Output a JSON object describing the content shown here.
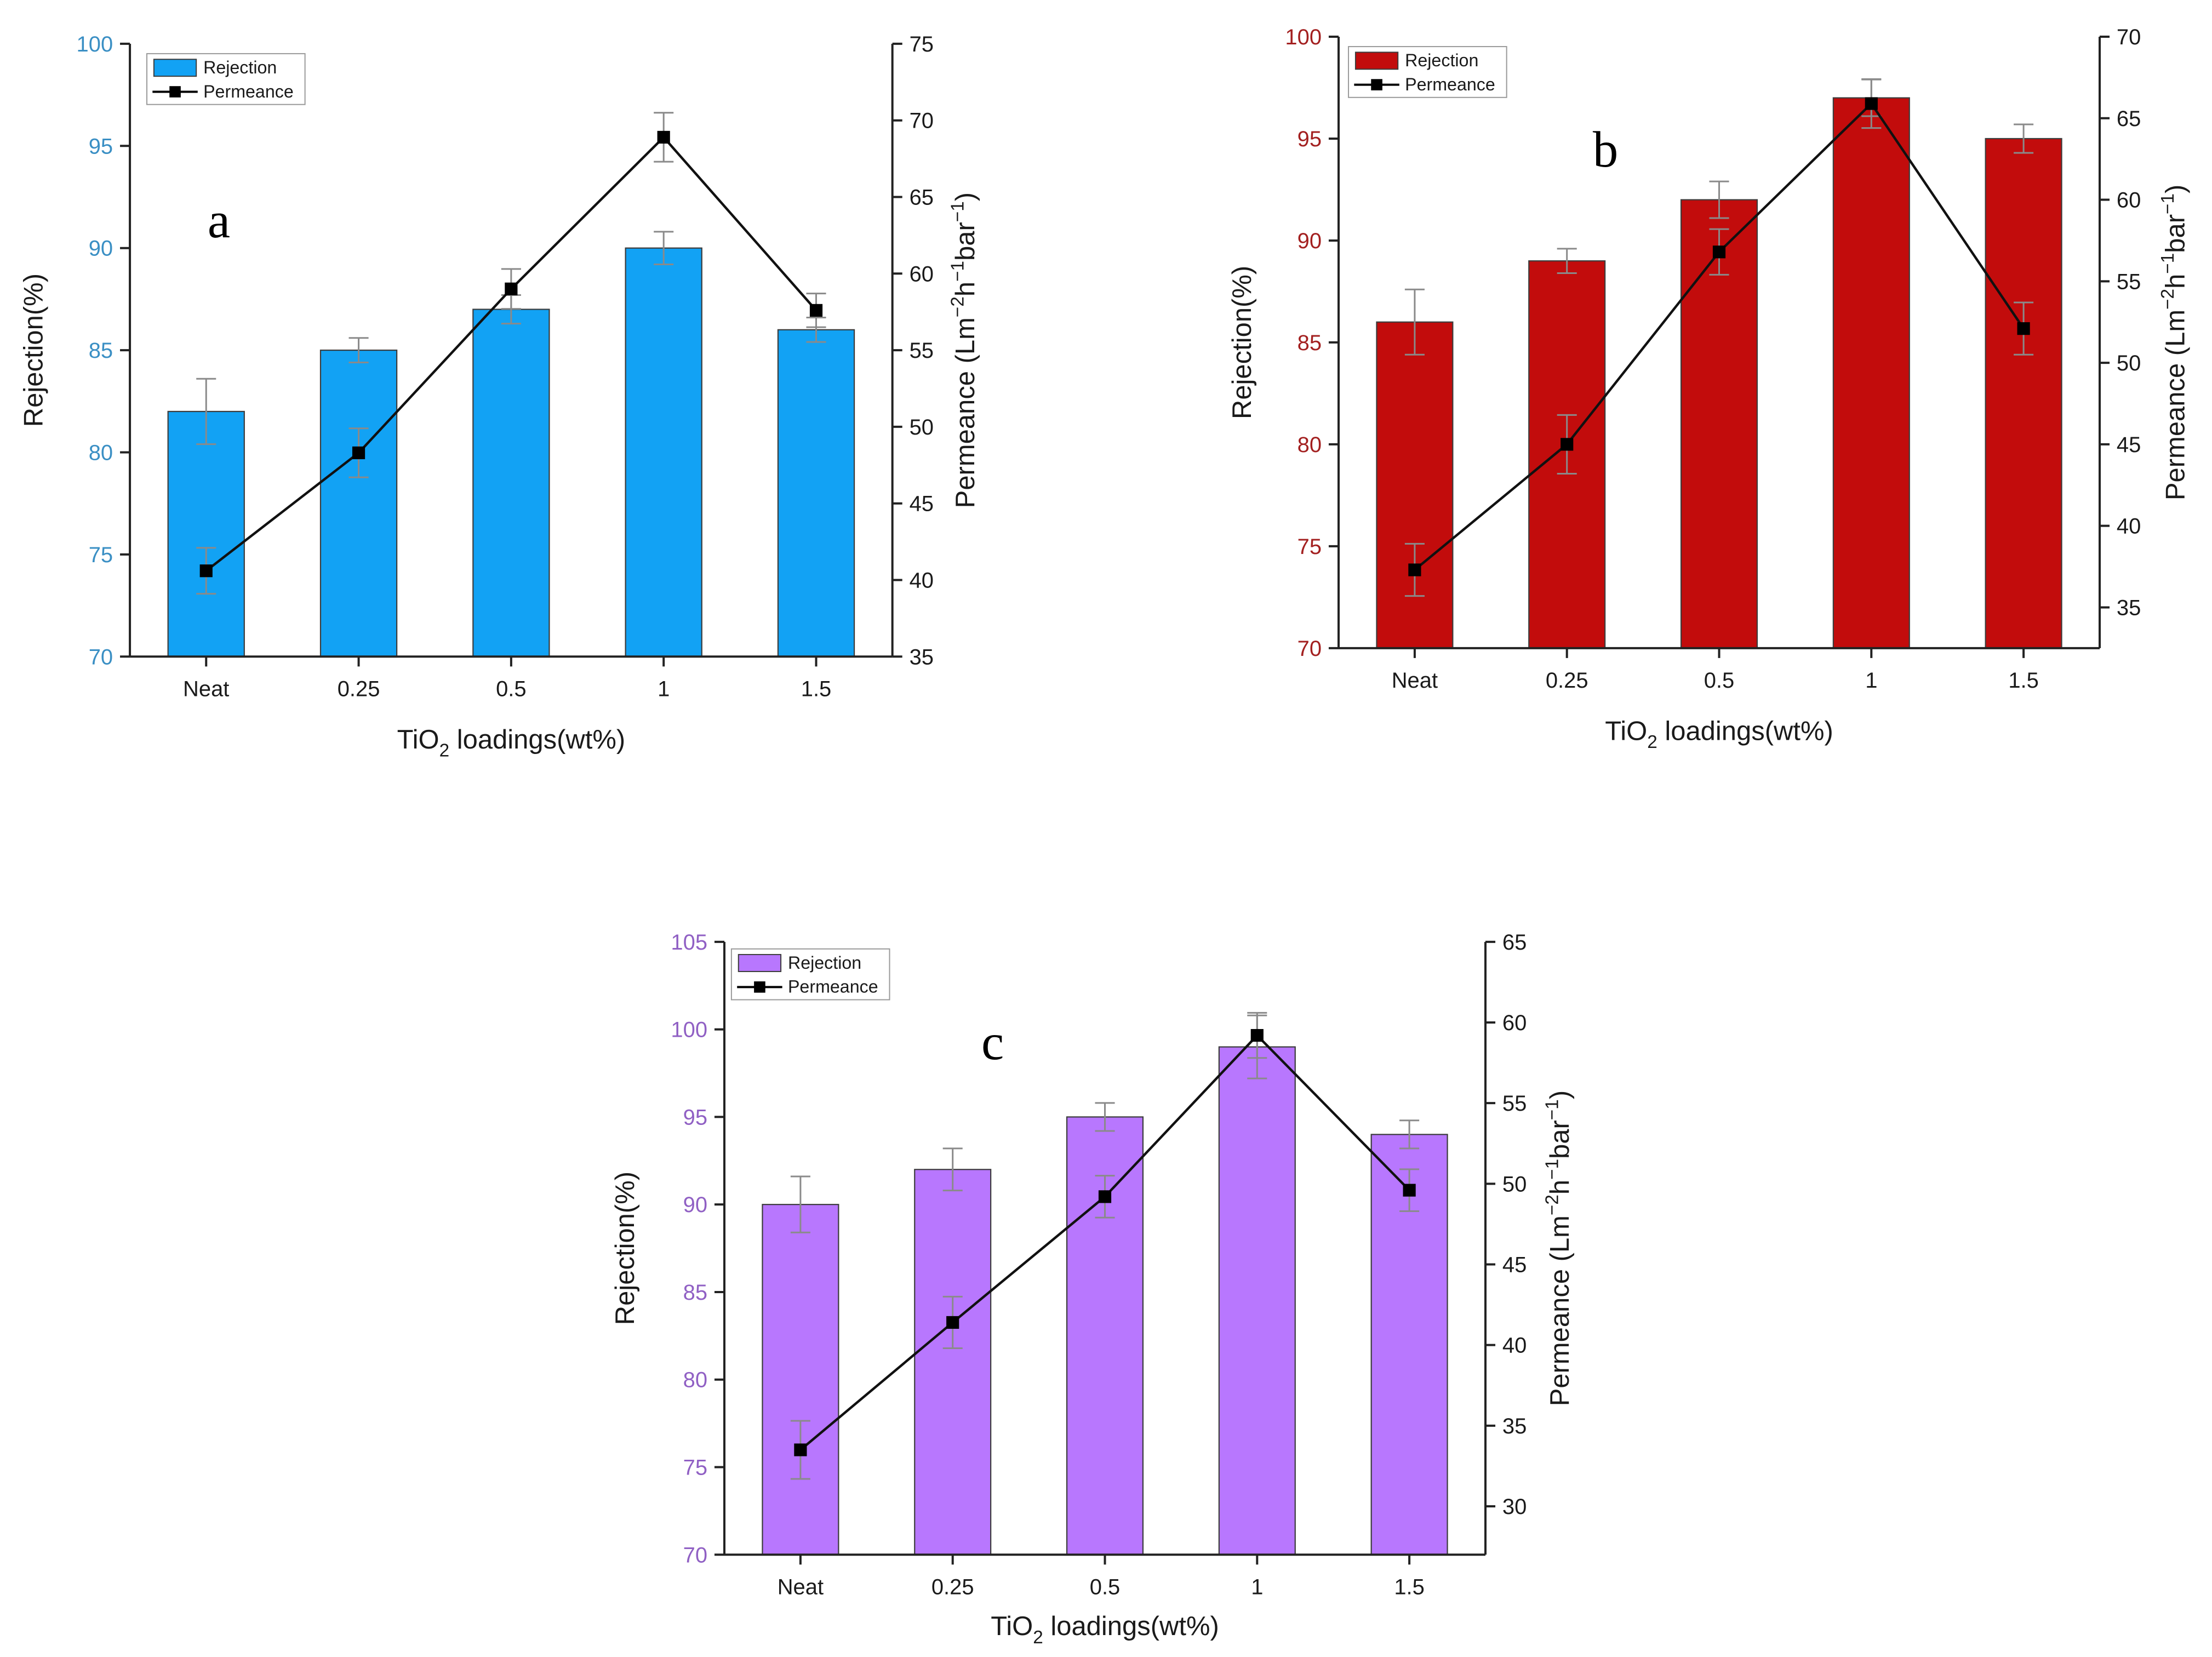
{
  "figure": {
    "background": "#ffffff",
    "axis_color": "#222222",
    "line_color": "#111111",
    "error_bar_color": "#8a8a8a"
  },
  "chart_data": [
    {
      "id": "a",
      "type": "bar+line",
      "panel_label": "a",
      "accent_color": "#3a8fc4",
      "bar_color": "#12a2f4",
      "categories": [
        "Neat",
        "0.25",
        "0.5",
        "1",
        "1.5"
      ],
      "xlabel_main": "TiO",
      "xlabel_sub": "2",
      "xlabel_rest": " loadings(wt%)",
      "ylabel": "Rejection(%)",
      "y2label_parts": [
        "Permeance (Lm",
        "−2",
        "h",
        "−1",
        "bar",
        "−1",
        ")"
      ],
      "ylim": [
        70,
        100
      ],
      "yticks": [
        70,
        75,
        80,
        85,
        90,
        95,
        100
      ],
      "y2lim": [
        35,
        75
      ],
      "y2ticks": [
        35,
        40,
        45,
        50,
        55,
        60,
        65,
        70,
        75
      ],
      "series": [
        {
          "name": "Rejection",
          "kind": "bar",
          "values": [
            82,
            85,
            87,
            90,
            86
          ],
          "errors": [
            1.6,
            0.6,
            0.7,
            0.8,
            0.6
          ]
        },
        {
          "name": "Permeance",
          "kind": "line",
          "axis": "right",
          "values": [
            40.6,
            48.3,
            59.0,
            68.9,
            57.6
          ],
          "errors": [
            1.5,
            1.6,
            1.3,
            1.6,
            1.1
          ]
        }
      ],
      "legend": [
        "Rejection",
        "Permeance"
      ],
      "legend_position": "top-left"
    },
    {
      "id": "b",
      "type": "bar+line",
      "panel_label": "b",
      "accent_color": "#a32020",
      "bar_color": "#c20c0c",
      "categories": [
        "Neat",
        "0.25",
        "0.5",
        "1",
        "1.5"
      ],
      "xlabel_main": "TiO",
      "xlabel_sub": "2",
      "xlabel_rest": " loadings(wt%)",
      "ylabel": "Rejection(%)",
      "y2label_parts": [
        "Permeance (Lm",
        "−2",
        "h",
        "−1",
        "bar",
        "−1",
        ")"
      ],
      "ylim": [
        70,
        100
      ],
      "yticks": [
        70,
        75,
        80,
        85,
        90,
        95,
        100
      ],
      "y2lim": [
        32.5,
        70
      ],
      "y2ticks": [
        35,
        40,
        45,
        50,
        55,
        60,
        65,
        70
      ],
      "series": [
        {
          "name": "Rejection",
          "kind": "bar",
          "values": [
            86,
            89,
            92,
            97,
            95
          ],
          "errors": [
            1.6,
            0.6,
            0.9,
            0.9,
            0.7
          ]
        },
        {
          "name": "Permeance",
          "kind": "line",
          "axis": "right",
          "values": [
            37.3,
            45.0,
            56.8,
            65.9,
            52.1
          ],
          "errors": [
            1.6,
            1.8,
            1.4,
            1.5,
            1.6
          ]
        }
      ],
      "legend": [
        "Rejection",
        "Permeance"
      ],
      "legend_position": "top-left"
    },
    {
      "id": "c",
      "type": "bar+line",
      "panel_label": "c",
      "accent_color": "#9060c4",
      "bar_color": "#b877fe",
      "categories": [
        "Neat",
        "0.25",
        "0.5",
        "1",
        "1.5"
      ],
      "xlabel_main": "TiO",
      "xlabel_sub": "2",
      "xlabel_rest": " loadings(wt%)",
      "ylabel": "Rejection(%)",
      "y2label_parts": [
        "Permeance (Lm",
        "−2",
        "h",
        "−1",
        "bar",
        "−1",
        ")"
      ],
      "ylim": [
        70,
        105
      ],
      "yticks": [
        70,
        75,
        80,
        85,
        90,
        95,
        100,
        105
      ],
      "y2lim": [
        27,
        65
      ],
      "y2ticks": [
        30,
        35,
        40,
        45,
        50,
        55,
        60,
        65
      ],
      "series": [
        {
          "name": "Rejection",
          "kind": "bar",
          "values": [
            90,
            92,
            95,
            99,
            94
          ],
          "errors": [
            1.6,
            1.2,
            0.8,
            1.8,
            0.8
          ]
        },
        {
          "name": "Permeance",
          "kind": "line",
          "axis": "right",
          "values": [
            33.5,
            41.4,
            49.2,
            59.2,
            49.6
          ],
          "errors": [
            1.8,
            1.6,
            1.3,
            1.4,
            1.3
          ]
        }
      ],
      "legend": [
        "Rejection",
        "Permeance"
      ],
      "legend_position": "top-left"
    }
  ]
}
